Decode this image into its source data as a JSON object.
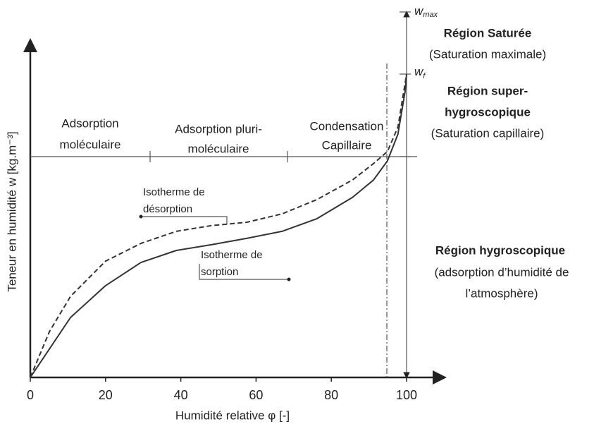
{
  "chart_data": {
    "type": "line",
    "xlabel": "Humidité relative φ [-]",
    "ylabel": "Teneur en humidité w [kg.m⁻³]",
    "xlim": [
      0,
      100
    ],
    "ylim": [
      0,
      1
    ],
    "xticks": [
      0,
      20,
      40,
      60,
      80,
      100
    ],
    "series": [
      {
        "color": "#333333",
        "dash": false,
        "x": [
          0,
          10.7,
          20.0,
          29.4,
          38.8,
          48.1,
          57.5,
          66.9,
          76.2,
          85.6,
          91.2,
          94.9,
          97.7,
          99.6,
          100
        ],
        "values": [
          0,
          0.179,
          0.274,
          0.343,
          0.379,
          0.396,
          0.415,
          0.436,
          0.474,
          0.537,
          0.589,
          0.646,
          0.726,
          0.853,
          0.905
        ]
      },
      {
        "color": "#333333",
        "dash": true,
        "x": [
          0,
          5.1,
          10.7,
          20.0,
          29.4,
          38.8,
          48.1,
          57.5,
          66.9,
          76.2,
          85.6,
          91.2,
          94.9,
          97.7,
          100
        ],
        "values": [
          0,
          0.137,
          0.242,
          0.347,
          0.4,
          0.436,
          0.453,
          0.463,
          0.488,
          0.531,
          0.589,
          0.638,
          0.674,
          0.747,
          0.905
        ]
      }
    ],
    "zones": [
      [
        "Adsorption",
        "moléculaire"
      ],
      [
        "Adsorption pluri-",
        "moléculaire"
      ],
      [
        "Condensation",
        "Capillaire"
      ]
    ],
    "annotations": {
      "desorption": [
        "Isotherme de",
        "désorption"
      ],
      "sorption": [
        "Isotherme de",
        "sorption"
      ]
    },
    "levels": {
      "wmax": {
        "symbol": "w",
        "sub": "max"
      },
      "wf": {
        "symbol": "w",
        "sub": "f"
      }
    },
    "regions": {
      "saturee": {
        "title": "Région Saturée",
        "lines": [
          "(Saturation maximale)"
        ]
      },
      "super": {
        "title": [
          "Région super-",
          "hygroscopique"
        ],
        "lines": [
          "(Saturation capillaire)"
        ]
      },
      "hygro": {
        "title": "Région hygroscopique",
        "lines": [
          "(adsorption d’humidité de",
          "l’atmosphère)"
        ]
      }
    }
  }
}
